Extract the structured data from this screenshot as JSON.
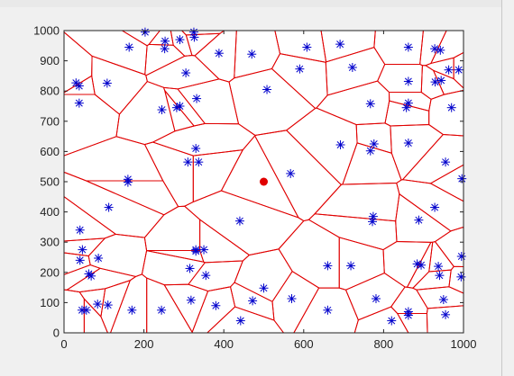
{
  "colors": {
    "figure_bg": "#f0f0f0",
    "axes_bg": "#ffffff",
    "voronoi_edges": "#e00000",
    "points": "#0000cc",
    "highlight": "#e00000",
    "axis": "#222222"
  },
  "chart_data": {
    "type": "scatter",
    "title": "",
    "xlabel": "",
    "ylabel": "",
    "xlim": [
      0,
      1000
    ],
    "ylim": [
      0,
      1000
    ],
    "xticks": [
      "0",
      "200",
      "400",
      "600",
      "800",
      "1000"
    ],
    "yticks": [
      "0",
      "100",
      "200",
      "300",
      "400",
      "500",
      "600",
      "700",
      "800",
      "900",
      "1000"
    ],
    "xtick_values": [
      0,
      200,
      400,
      600,
      800,
      1000
    ],
    "ytick_values": [
      0,
      100,
      200,
      300,
      400,
      500,
      600,
      700,
      800,
      900,
      1000
    ],
    "grid": false,
    "legend": "none",
    "series": [
      {
        "marker": "asterisk",
        "color": "#0000cc",
        "points": [
          [
            30,
            827
          ],
          [
            38,
            817
          ],
          [
            38,
            760
          ],
          [
            108,
            826
          ],
          [
            163,
            945
          ],
          [
            203,
            995
          ],
          [
            253,
            965
          ],
          [
            252,
            940
          ],
          [
            290,
            970
          ],
          [
            305,
            860
          ],
          [
            326,
            978
          ],
          [
            325,
            995
          ],
          [
            388,
            925
          ],
          [
            470,
            922
          ],
          [
            608,
            945
          ],
          [
            691,
            955
          ],
          [
            508,
            805
          ],
          [
            590,
            873
          ],
          [
            722,
            878
          ],
          [
            862,
            945
          ],
          [
            928,
            940
          ],
          [
            942,
            935
          ],
          [
            963,
            870
          ],
          [
            988,
            870
          ],
          [
            862,
            832
          ],
          [
            929,
            830
          ],
          [
            944,
            835
          ],
          [
            970,
            745
          ],
          [
            245,
            738
          ],
          [
            282,
            745
          ],
          [
            290,
            750
          ],
          [
            332,
            775
          ],
          [
            767,
            758
          ],
          [
            862,
            760
          ],
          [
            857,
            745
          ],
          [
            692,
            622
          ],
          [
            776,
            625
          ],
          [
            767,
            602
          ],
          [
            862,
            628
          ],
          [
            330,
            610
          ],
          [
            310,
            565
          ],
          [
            337,
            565
          ],
          [
            567,
            527
          ],
          [
            955,
            565
          ],
          [
            996,
            510
          ],
          [
            160,
            508
          ],
          [
            160,
            498
          ],
          [
            112,
            415
          ],
          [
            440,
            370
          ],
          [
            774,
            385
          ],
          [
            772,
            368
          ],
          [
            888,
            373
          ],
          [
            928,
            415
          ],
          [
            40,
            340
          ],
          [
            46,
            275
          ],
          [
            330,
            275
          ],
          [
            330,
            270
          ],
          [
            350,
            275
          ],
          [
            40,
            240
          ],
          [
            86,
            247
          ],
          [
            62,
            195
          ],
          [
            68,
            188
          ],
          [
            315,
            213
          ],
          [
            355,
            190
          ],
          [
            660,
            222
          ],
          [
            718,
            222
          ],
          [
            884,
            228
          ],
          [
            894,
            224
          ],
          [
            937,
            220
          ],
          [
            995,
            253
          ],
          [
            994,
            185
          ],
          [
            940,
            190
          ],
          [
            950,
            110
          ],
          [
            955,
            60
          ],
          [
            45,
            75
          ],
          [
            56,
            75
          ],
          [
            84,
            95
          ],
          [
            110,
            92
          ],
          [
            170,
            75
          ],
          [
            244,
            75
          ],
          [
            318,
            108
          ],
          [
            380,
            90
          ],
          [
            442,
            40
          ],
          [
            500,
            148
          ],
          [
            472,
            106
          ],
          [
            570,
            113
          ],
          [
            660,
            75
          ],
          [
            781,
            113
          ],
          [
            820,
            40
          ],
          [
            862,
            70
          ],
          [
            862,
            58
          ]
        ]
      },
      {
        "marker": "dot",
        "color": "#e00000",
        "points": [
          [
            500,
            500
          ]
        ]
      }
    ]
  }
}
